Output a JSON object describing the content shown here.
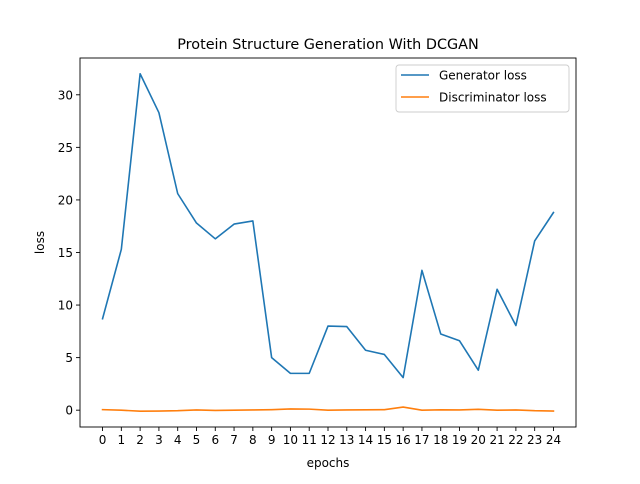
{
  "chart_data": {
    "type": "line",
    "title": "Protein Structure Generation With DCGAN",
    "xlabel": "epochs",
    "ylabel": "loss",
    "x": [
      0,
      1,
      2,
      3,
      4,
      5,
      6,
      7,
      8,
      9,
      10,
      11,
      12,
      13,
      14,
      15,
      16,
      17,
      18,
      19,
      20,
      21,
      22,
      23,
      24
    ],
    "xlim": [
      -1.2,
      25.2
    ],
    "ylim": [
      -1.6,
      33.5
    ],
    "yticks": [
      0,
      5,
      10,
      15,
      20,
      25,
      30
    ],
    "grid": false,
    "legend": "top-right",
    "series": [
      {
        "name": "Generator loss",
        "color": "#1f77b4",
        "values": [
          8.7,
          15.3,
          32.0,
          28.3,
          20.6,
          17.8,
          16.3,
          17.7,
          18.0,
          5.0,
          3.5,
          3.5,
          8.0,
          7.95,
          5.7,
          5.3,
          3.1,
          13.3,
          7.25,
          6.6,
          3.8,
          11.5,
          8.05,
          16.1,
          18.8
        ]
      },
      {
        "name": "Discriminator loss",
        "color": "#ff7f0e",
        "values": [
          0.05,
          0.0,
          -0.1,
          -0.08,
          -0.05,
          0.02,
          -0.02,
          0.0,
          0.02,
          0.05,
          0.12,
          0.1,
          0.0,
          0.02,
          0.03,
          0.05,
          0.3,
          0.0,
          0.03,
          0.02,
          0.08,
          0.0,
          0.02,
          -0.05,
          -0.08
        ]
      }
    ]
  }
}
